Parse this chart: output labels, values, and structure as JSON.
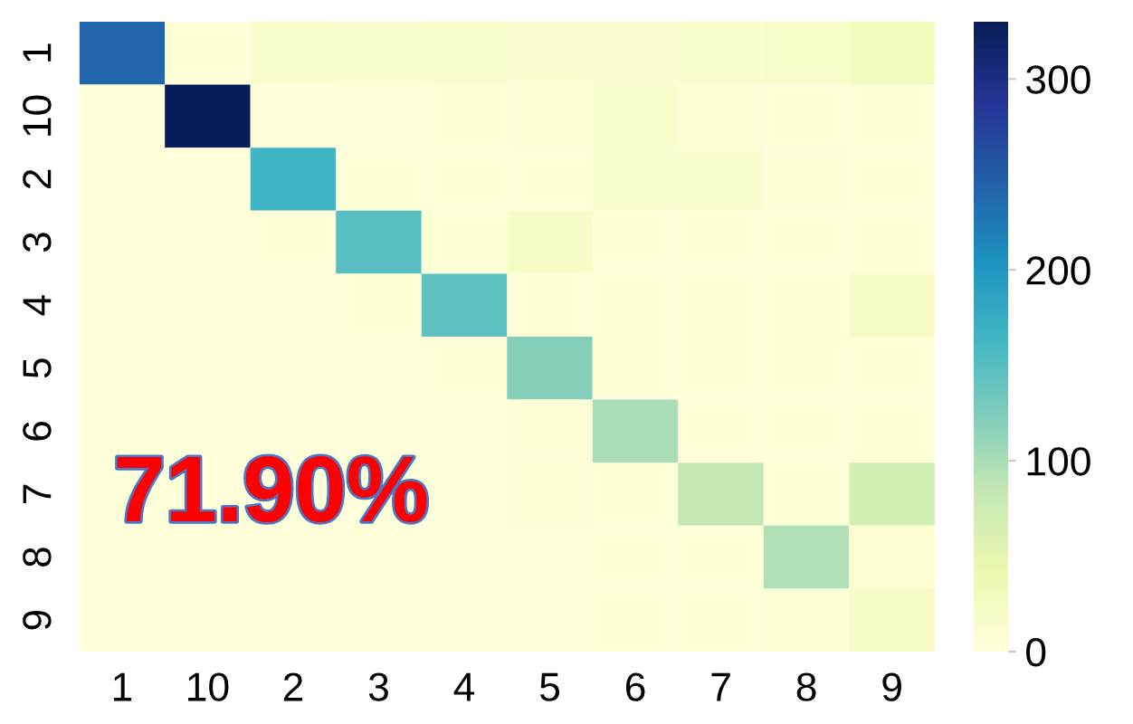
{
  "chart_data": {
    "type": "heatmap",
    "categories": [
      "1",
      "10",
      "2",
      "3",
      "4",
      "5",
      "6",
      "7",
      "8",
      "9"
    ],
    "y_categories": [
      "1",
      "10",
      "2",
      "3",
      "4",
      "5",
      "6",
      "7",
      "8",
      "9"
    ],
    "cells": [
      [
        240,
        3,
        15,
        12,
        15,
        10,
        10,
        15,
        18,
        30
      ],
      [
        2,
        330,
        2,
        2,
        3,
        5,
        15,
        5,
        3,
        3
      ],
      [
        2,
        2,
        165,
        3,
        3,
        3,
        12,
        12,
        5,
        3
      ],
      [
        2,
        2,
        3,
        150,
        3,
        20,
        3,
        3,
        3,
        3
      ],
      [
        2,
        2,
        2,
        3,
        145,
        3,
        3,
        3,
        3,
        20
      ],
      [
        2,
        2,
        2,
        2,
        3,
        120,
        3,
        3,
        3,
        3
      ],
      [
        2,
        2,
        2,
        2,
        2,
        5,
        100,
        3,
        3,
        3
      ],
      [
        2,
        2,
        2,
        2,
        2,
        5,
        3,
        85,
        3,
        70
      ],
      [
        2,
        2,
        2,
        2,
        2,
        2,
        3,
        3,
        95,
        8
      ],
      [
        2,
        2,
        2,
        2,
        2,
        2,
        3,
        3,
        5,
        20
      ]
    ],
    "clim": [
      0,
      330
    ],
    "cticks": [
      0,
      100,
      200,
      300
    ],
    "annotations": [
      "71.90%"
    ]
  }
}
